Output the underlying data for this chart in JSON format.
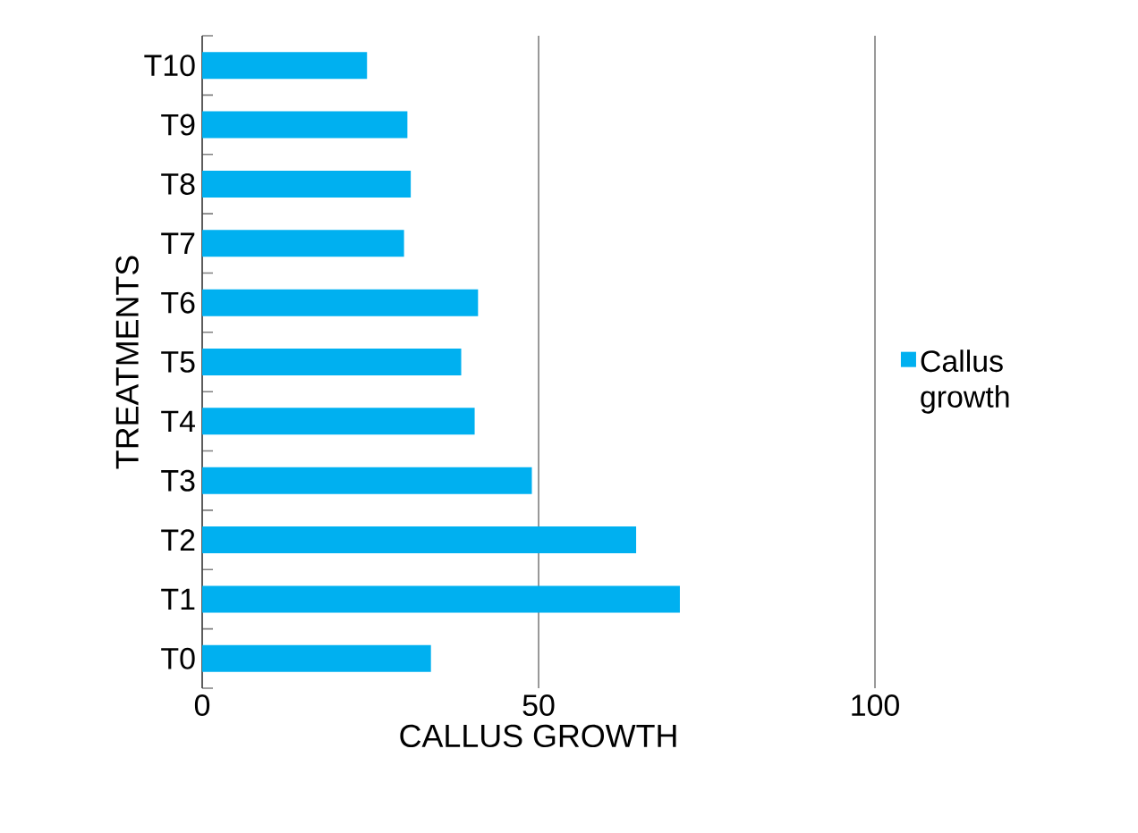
{
  "chart_data": {
    "type": "bar",
    "orientation": "horizontal",
    "xlabel": "CALLUS GROWTH",
    "ylabel": "TREATMENTS",
    "categories": [
      "T10",
      "T9",
      "T8",
      "T7",
      "T6",
      "T5",
      "T4",
      "T3",
      "T2",
      "T1",
      "T0"
    ],
    "series": [
      {
        "name": "Callus growth",
        "color": "#00b0f0",
        "values": [
          24.5,
          30.5,
          31,
          30,
          41,
          38.5,
          40.5,
          49,
          64.5,
          71,
          34
        ]
      }
    ],
    "xlim": [
      0,
      100
    ],
    "xticks": [
      0,
      50,
      100
    ],
    "grid": "x",
    "legend": "right"
  }
}
